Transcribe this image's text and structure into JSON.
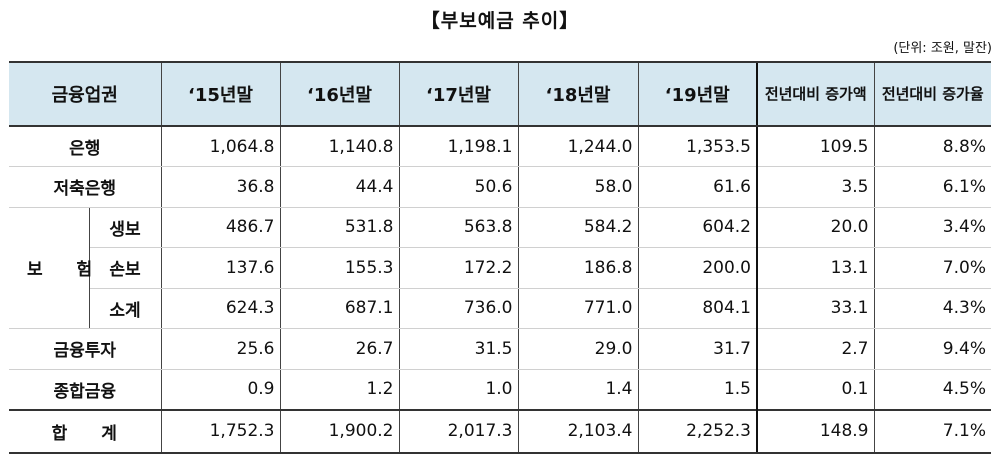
{
  "title": "【부보예금 추이】",
  "unit_note": "(단위: 조원, 말잔)",
  "columns": [
    "금융업권",
    "‘15년말",
    "‘16년말",
    "‘17년말",
    "‘18년말",
    "‘19년말",
    "전년대비 증가액",
    "전년대비 증가율"
  ],
  "rows": {
    "bank": {
      "label": "은행",
      "values": [
        "1,064.8",
        "1,140.8",
        "1,198.1",
        "1,244.0",
        "1,353.5",
        "109.5",
        "8.8%"
      ]
    },
    "savings": {
      "label": "저축은행",
      "values": [
        "36.8",
        "44.4",
        "50.6",
        "58.0",
        "61.6",
        "3.5",
        "6.1%"
      ]
    },
    "insurance": {
      "label": "보 험",
      "life": {
        "label": "생보",
        "values": [
          "486.7",
          "531.8",
          "563.8",
          "584.2",
          "604.2",
          "20.0",
          "3.4%"
        ]
      },
      "nonlife": {
        "label": "손보",
        "values": [
          "137.6",
          "155.3",
          "172.2",
          "186.8",
          "200.0",
          "13.1",
          "7.0%"
        ]
      },
      "subtotal": {
        "label": "소계",
        "values": [
          "624.3",
          "687.1",
          "736.0",
          "771.0",
          "804.1",
          "33.1",
          "4.3%"
        ]
      }
    },
    "investment": {
      "label": "금융투자",
      "values": [
        "25.6",
        "26.7",
        "31.5",
        "29.0",
        "31.7",
        "2.7",
        "9.4%"
      ]
    },
    "composite": {
      "label": "종합금융",
      "values": [
        "0.9",
        "1.2",
        "1.0",
        "1.4",
        "1.5",
        "0.1",
        "4.5%"
      ]
    },
    "total": {
      "label": "합 계",
      "values": [
        "1,752.3",
        "1,900.2",
        "2,017.3",
        "2,103.4",
        "2,252.3",
        "148.9",
        "7.1%"
      ]
    }
  }
}
